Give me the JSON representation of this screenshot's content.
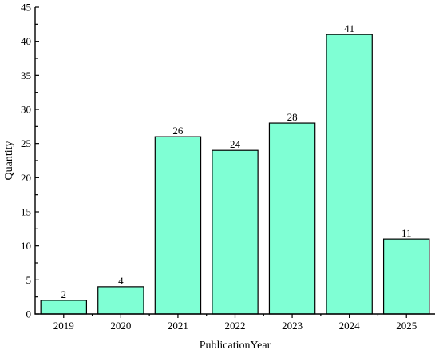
{
  "chart_data": {
    "type": "bar",
    "categories": [
      "2019",
      "2020",
      "2021",
      "2022",
      "2023",
      "2024",
      "2025"
    ],
    "values": [
      2,
      4,
      26,
      24,
      28,
      41,
      11
    ],
    "data_labels": [
      "2",
      "4",
      "26",
      "24",
      "28",
      "41",
      "11"
    ],
    "title": "",
    "xlabel": "PublicationYear",
    "ylabel": "Quantity",
    "ylim": [
      0,
      45
    ],
    "yticks": [
      0,
      5,
      10,
      15,
      20,
      25,
      30,
      35,
      40,
      45
    ],
    "grid": false,
    "legend": "none",
    "bar_color": "#7fffd4",
    "bar_edge_color": "#000000"
  }
}
